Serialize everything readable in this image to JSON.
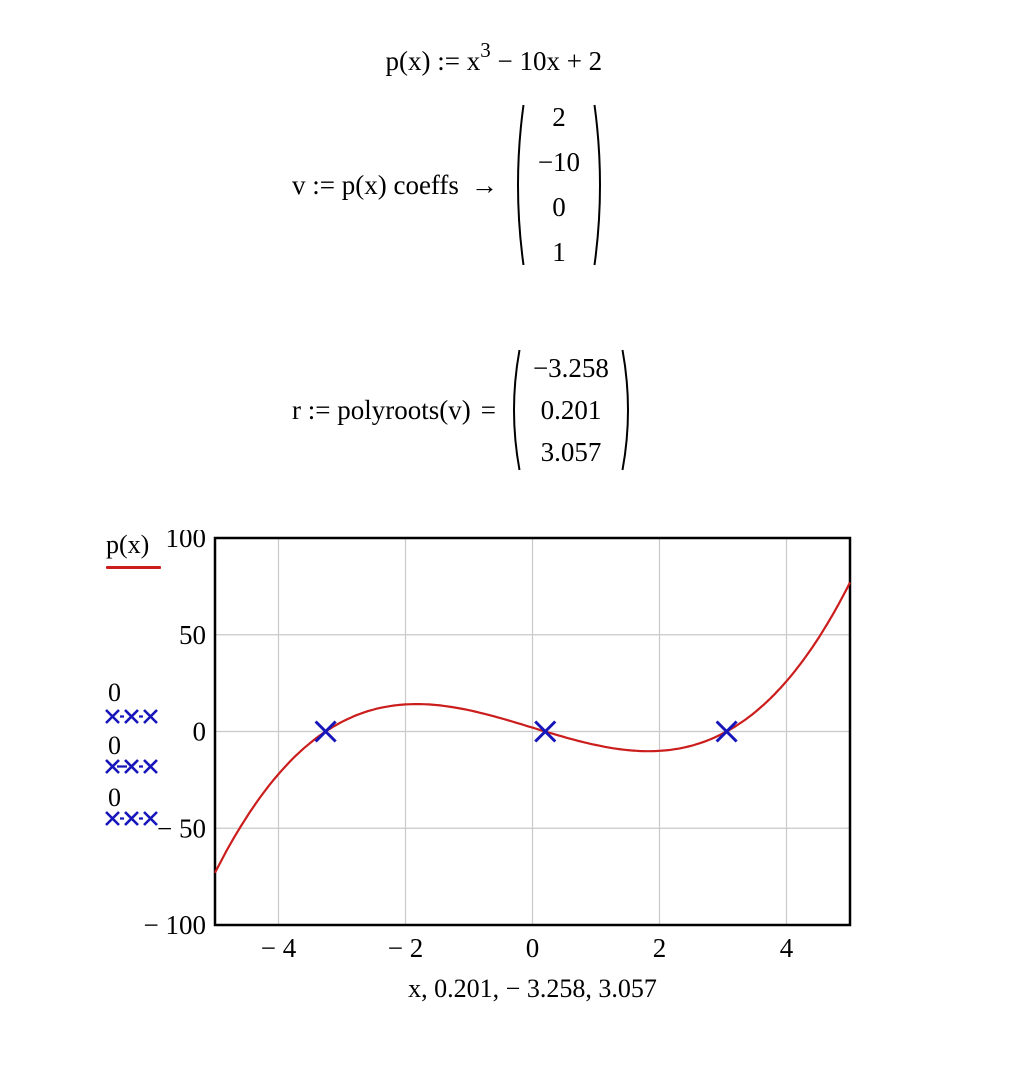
{
  "equations": {
    "definition": {
      "base": "p(x) := x",
      "exponent": "3",
      "rest": " − 10x + 2"
    },
    "coeffs": {
      "lhs": "v := p(x) coeffs",
      "arrow": "→",
      "vector": [
        "2",
        "−10",
        "0",
        "1"
      ]
    },
    "roots": {
      "lhs": "r := polyroots(v)",
      "equals": "=",
      "vector": [
        "−3.258",
        "0.201",
        "3.057"
      ]
    }
  },
  "legend": {
    "trace_label": "p(x)",
    "root_trace_labels": [
      "0",
      "0",
      "0"
    ]
  },
  "chart_data": {
    "type": "line",
    "title": "",
    "xlabel": "x, 0.201, − 3.258, 3.057",
    "ylabel": "",
    "xlim": [
      -5,
      5
    ],
    "ylim": [
      -100,
      100
    ],
    "x_ticks": [
      -4,
      -2,
      0,
      2,
      4
    ],
    "x_tick_labels": [
      "− 4",
      "− 2",
      "0",
      "2",
      "4"
    ],
    "y_ticks": [
      100,
      50,
      0,
      -50,
      -100
    ],
    "y_tick_labels": [
      "100",
      "50",
      "0",
      "− 50",
      "− 100"
    ],
    "grid": true,
    "legend_position": "left",
    "series": [
      {
        "name": "p(x)",
        "kind": "function-polynomial",
        "coefficients_ascending": [
          2,
          -10,
          0,
          1
        ],
        "x_range": [
          -5,
          5
        ],
        "samples": 220,
        "color": "#cc1d1d",
        "style": "solid"
      },
      {
        "name": "0",
        "kind": "points",
        "points": [
          {
            "x": -3.258,
            "y": 0
          }
        ],
        "marker": "x",
        "color": "#1616bb"
      },
      {
        "name": "0",
        "kind": "points",
        "points": [
          {
            "x": 0.201,
            "y": 0
          }
        ],
        "marker": "x",
        "color": "#1616bb"
      },
      {
        "name": "0",
        "kind": "points",
        "points": [
          {
            "x": 3.057,
            "y": 0
          }
        ],
        "marker": "x",
        "color": "#1616bb"
      }
    ]
  },
  "colors": {
    "curve": "#cc1d1d",
    "marker": "#1616bb",
    "grid": "#c9c9c9",
    "axis": "#000000",
    "background": "#ffffff"
  }
}
